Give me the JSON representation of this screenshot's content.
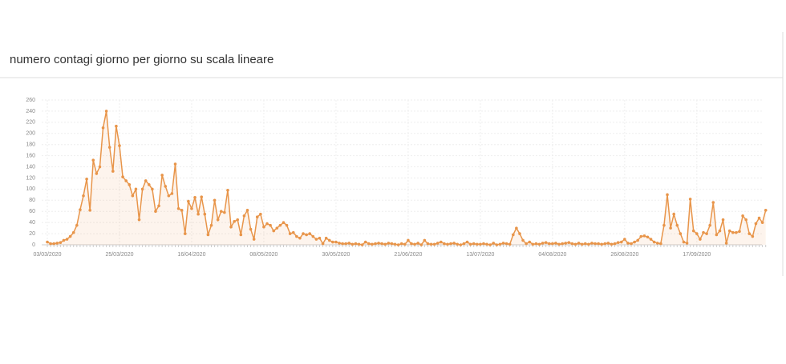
{
  "chart_data": {
    "type": "line",
    "title": "numero contagi giorno per giorno su scala lineare",
    "categories": [
      "03/03/2020",
      null,
      null,
      null,
      null,
      null,
      null,
      null,
      null,
      null,
      null,
      null,
      null,
      null,
      null,
      null,
      null,
      null,
      null,
      null,
      null,
      null,
      "25/03/2020",
      null,
      null,
      null,
      null,
      null,
      null,
      null,
      null,
      null,
      null,
      null,
      null,
      null,
      null,
      null,
      null,
      null,
      null,
      null,
      null,
      null,
      "16/04/2020",
      null,
      null,
      null,
      null,
      null,
      null,
      null,
      null,
      null,
      null,
      null,
      null,
      null,
      null,
      null,
      null,
      null,
      null,
      null,
      null,
      null,
      "08/05/2020",
      null,
      null,
      null,
      null,
      null,
      null,
      null,
      null,
      null,
      null,
      null,
      null,
      null,
      null,
      null,
      null,
      null,
      null,
      null,
      null,
      null,
      "30/05/2020",
      null,
      null,
      null,
      null,
      null,
      null,
      null,
      null,
      null,
      null,
      null,
      null,
      null,
      null,
      null,
      null,
      null,
      null,
      null,
      null,
      null,
      "21/06/2020",
      null,
      null,
      null,
      null,
      null,
      null,
      null,
      null,
      null,
      null,
      null,
      null,
      null,
      null,
      null,
      null,
      null,
      null,
      null,
      null,
      null,
      "13/07/2020",
      null,
      null,
      null,
      null,
      null,
      null,
      null,
      null,
      null,
      null,
      null,
      null,
      null,
      null,
      null,
      null,
      null,
      null,
      null,
      null,
      null,
      "04/08/2020",
      null,
      null,
      null,
      null,
      null,
      null,
      null,
      null,
      null,
      null,
      null,
      null,
      null,
      null,
      null,
      null,
      null,
      null,
      null,
      null,
      null,
      "26/08/2020",
      null,
      null,
      null,
      null,
      null,
      null,
      null,
      null,
      null,
      null,
      null,
      null,
      null,
      null,
      null,
      null,
      null,
      null,
      null,
      null,
      null,
      "17/09/2020",
      null,
      null,
      null,
      null,
      null,
      null,
      null,
      null,
      null,
      null,
      null,
      null,
      null,
      null,
      null,
      null,
      null,
      null,
      null,
      null,
      null
    ],
    "values": [
      5,
      2,
      2,
      3,
      4,
      8,
      10,
      15,
      22,
      35,
      63,
      88,
      118,
      62,
      152,
      128,
      140,
      210,
      240,
      175,
      132,
      213,
      178,
      122,
      115,
      108,
      88,
      100,
      45,
      100,
      115,
      108,
      100,
      60,
      70,
      125,
      105,
      88,
      92,
      145,
      65,
      62,
      20,
      78,
      65,
      85,
      55,
      86,
      55,
      18,
      35,
      80,
      45,
      60,
      58,
      98,
      32,
      42,
      45,
      18,
      52,
      62,
      28,
      10,
      50,
      55,
      32,
      38,
      35,
      25,
      30,
      35,
      40,
      35,
      20,
      22,
      15,
      12,
      20,
      18,
      20,
      15,
      10,
      12,
      2,
      12,
      8,
      5,
      5,
      3,
      2,
      2,
      3,
      1,
      2,
      1,
      0,
      5,
      2,
      1,
      2,
      3,
      2,
      1,
      3,
      2,
      1,
      0,
      2,
      1,
      8,
      2,
      1,
      3,
      0,
      8,
      2,
      1,
      1,
      3,
      5,
      2,
      1,
      2,
      3,
      1,
      0,
      2,
      5,
      1,
      2,
      1,
      1,
      2,
      1,
      0,
      3,
      0,
      1,
      3,
      2,
      1,
      18,
      30,
      20,
      8,
      2,
      5,
      1,
      2,
      1,
      3,
      4,
      2,
      2,
      3,
      1,
      2,
      3,
      4,
      2,
      1,
      3,
      1,
      2,
      1,
      3,
      2,
      2,
      1,
      2,
      3,
      1,
      2,
      4,
      5,
      10,
      3,
      2,
      5,
      8,
      15,
      16,
      14,
      10,
      5,
      3,
      2,
      35,
      90,
      30,
      55,
      35,
      20,
      5,
      3,
      82,
      25,
      20,
      10,
      22,
      20,
      35,
      76,
      18,
      25,
      45,
      3,
      25,
      22,
      22,
      24,
      52,
      45,
      20,
      15,
      38,
      48,
      40,
      62
    ],
    "color": "#e8954a",
    "ylim": [
      0,
      260
    ],
    "yticks": [
      0,
      20,
      40,
      60,
      80,
      100,
      120,
      140,
      160,
      180,
      200,
      220,
      240,
      260
    ],
    "grid": true
  }
}
